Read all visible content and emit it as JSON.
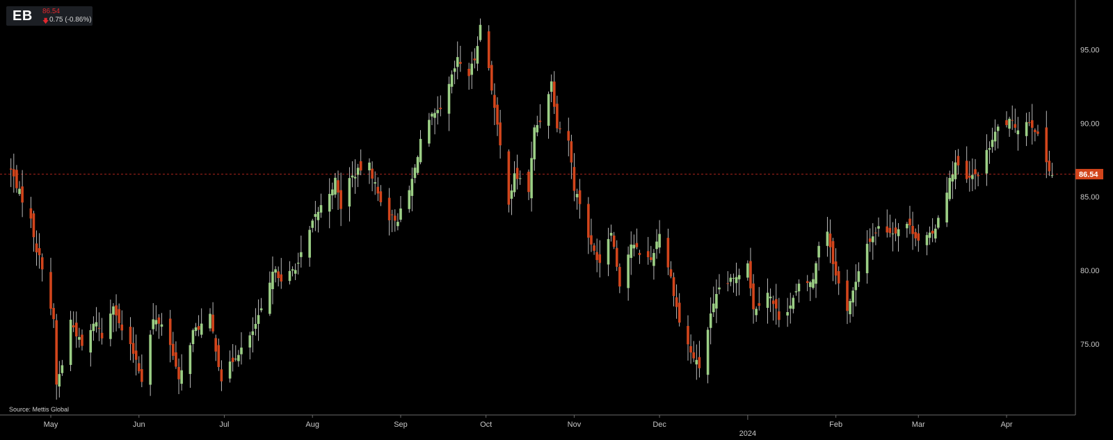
{
  "header": {
    "ticker": "EB",
    "price": "86.54",
    "change_arrow": "🡇",
    "change": "0.75 (-0.86%)"
  },
  "source": "Source: Mettis Global",
  "colors": {
    "background": "#000000",
    "up": "#9ccf86",
    "down": "#d2451c",
    "last_price_line": "#a8231b",
    "last_price_label_bg": "#d2451c",
    "axis_text": "#c8c8c8",
    "axis_line": "#6a6a6a"
  },
  "chart_data": {
    "type": "candlestick",
    "title": "",
    "xlabel": "",
    "ylabel": "",
    "ylim": [
      70.5,
      98.0
    ],
    "yticks": [
      75.0,
      80.0,
      85.0,
      90.0,
      95.0
    ],
    "ytick_labels": [
      "75.00",
      "80.00",
      "85.00",
      "90.00",
      "95.00"
    ],
    "xticks": [
      {
        "date": "2023-05-01",
        "label": "May"
      },
      {
        "date": "2023-06-01",
        "label": "Jun"
      },
      {
        "date": "2023-07-01",
        "label": "Jul"
      },
      {
        "date": "2023-08-01",
        "label": "Aug"
      },
      {
        "date": "2023-09-01",
        "label": "Sep"
      },
      {
        "date": "2023-10-01",
        "label": "Oct"
      },
      {
        "date": "2023-11-01",
        "label": "Nov"
      },
      {
        "date": "2023-12-01",
        "label": "Dec"
      },
      {
        "date": "2024-01-01",
        "label": "2024"
      },
      {
        "date": "2024-02-01",
        "label": "Feb"
      },
      {
        "date": "2024-03-01",
        "label": "Mar"
      },
      {
        "date": "2024-04-01",
        "label": "Apr"
      }
    ],
    "last_price": 86.54,
    "last_price_label": "86.54",
    "anchors": [
      [
        "2023-04-17",
        86.8
      ],
      [
        "2023-04-20",
        85.3
      ],
      [
        "2023-04-24",
        83.4
      ],
      [
        "2023-04-26",
        81.4
      ],
      [
        "2023-04-28",
        80.3
      ],
      [
        "2023-05-02",
        76.5
      ],
      [
        "2023-05-03",
        72.2
      ],
      [
        "2023-05-05",
        73.6
      ],
      [
        "2023-05-08",
        76.6
      ],
      [
        "2023-05-12",
        74.8
      ],
      [
        "2023-05-17",
        76.6
      ],
      [
        "2023-05-19",
        75.4
      ],
      [
        "2023-05-23",
        77.8
      ],
      [
        "2023-05-25",
        76.3
      ],
      [
        "2023-05-31",
        74.0
      ],
      [
        "2023-06-02",
        72.6
      ],
      [
        "2023-06-06",
        76.6
      ],
      [
        "2023-06-09",
        76.4
      ],
      [
        "2023-06-13",
        74.4
      ],
      [
        "2023-06-15",
        72.4
      ],
      [
        "2023-06-20",
        75.8
      ],
      [
        "2023-06-26",
        76.8
      ],
      [
        "2023-06-28",
        74.7
      ],
      [
        "2023-06-30",
        72.6
      ],
      [
        "2023-07-05",
        74.2
      ],
      [
        "2023-07-10",
        75.4
      ],
      [
        "2023-07-14",
        77.2
      ],
      [
        "2023-07-19",
        80.3
      ],
      [
        "2023-07-21",
        79.1
      ],
      [
        "2023-07-27",
        80.5
      ],
      [
        "2023-08-02",
        83.7
      ],
      [
        "2023-08-07",
        85.3
      ],
      [
        "2023-08-09",
        86.1
      ],
      [
        "2023-08-11",
        84.3
      ],
      [
        "2023-08-14",
        86.2
      ],
      [
        "2023-08-18",
        86.9
      ],
      [
        "2023-08-21",
        87.1
      ],
      [
        "2023-08-24",
        85.2
      ],
      [
        "2023-08-28",
        83.6
      ],
      [
        "2023-08-31",
        83.5
      ],
      [
        "2023-09-04",
        85.4
      ],
      [
        "2023-09-06",
        86.9
      ],
      [
        "2023-09-08",
        88.9
      ],
      [
        "2023-09-12",
        90.4
      ],
      [
        "2023-09-15",
        90.8
      ],
      [
        "2023-09-19",
        93.1
      ],
      [
        "2023-09-21",
        94.3
      ],
      [
        "2023-09-25",
        93.3
      ],
      [
        "2023-09-27",
        94.4
      ],
      [
        "2023-09-29",
        96.6
      ],
      [
        "2023-10-02",
        93.8
      ],
      [
        "2023-10-04",
        91.0
      ],
      [
        "2023-10-06",
        88.4
      ],
      [
        "2023-10-09",
        84.7
      ],
      [
        "2023-10-11",
        86.4
      ],
      [
        "2023-10-13",
        86.2
      ],
      [
        "2023-10-16",
        85.4
      ],
      [
        "2023-10-18",
        89.6
      ],
      [
        "2023-10-20",
        90.2
      ],
      [
        "2023-10-24",
        92.8
      ],
      [
        "2023-10-26",
        89.9
      ],
      [
        "2023-10-30",
        88.9
      ],
      [
        "2023-11-01",
        85.6
      ],
      [
        "2023-11-03",
        84.6
      ],
      [
        "2023-11-07",
        81.6
      ],
      [
        "2023-11-10",
        80.6
      ],
      [
        "2023-11-14",
        82.8
      ],
      [
        "2023-11-17",
        79.1
      ],
      [
        "2023-11-21",
        81.8
      ],
      [
        "2023-11-24",
        81.2
      ],
      [
        "2023-11-28",
        80.7
      ],
      [
        "2023-12-01",
        82.6
      ],
      [
        "2023-12-05",
        79.5
      ],
      [
        "2023-12-08",
        76.5
      ],
      [
        "2023-12-12",
        74.4
      ],
      [
        "2023-12-15",
        73.4
      ],
      [
        "2023-12-19",
        76.9
      ],
      [
        "2023-12-22",
        78.8
      ],
      [
        "2023-12-27",
        79.4
      ],
      [
        "2024-01-01",
        80.6
      ],
      [
        "2024-01-03",
        77.3
      ],
      [
        "2024-01-08",
        78.6
      ],
      [
        "2024-01-12",
        76.8
      ],
      [
        "2024-01-16",
        77.6
      ],
      [
        "2024-01-19",
        78.9
      ],
      [
        "2024-01-24",
        79.3
      ],
      [
        "2024-01-26",
        81.8
      ],
      [
        "2024-01-29",
        82.7
      ],
      [
        "2024-02-01",
        79.6
      ],
      [
        "2024-02-05",
        77.4
      ],
      [
        "2024-02-08",
        79.1
      ],
      [
        "2024-02-12",
        81.8
      ],
      [
        "2024-02-16",
        82.9
      ],
      [
        "2024-02-21",
        82.6
      ],
      [
        "2024-02-26",
        83.2
      ],
      [
        "2024-03-01",
        82.1
      ],
      [
        "2024-03-06",
        82.4
      ],
      [
        "2024-03-11",
        85.5
      ],
      [
        "2024-03-14",
        87.3
      ],
      [
        "2024-03-18",
        86.1
      ],
      [
        "2024-03-22",
        86.6
      ],
      [
        "2024-03-26",
        88.4
      ],
      [
        "2024-03-29",
        89.7
      ],
      [
        "2024-04-02",
        90.1
      ],
      [
        "2024-04-05",
        89.7
      ],
      [
        "2024-04-09",
        90.2
      ],
      [
        "2024-04-11",
        89.6
      ],
      [
        "2024-04-15",
        87.4
      ],
      [
        "2024-04-17",
        86.54
      ]
    ]
  }
}
